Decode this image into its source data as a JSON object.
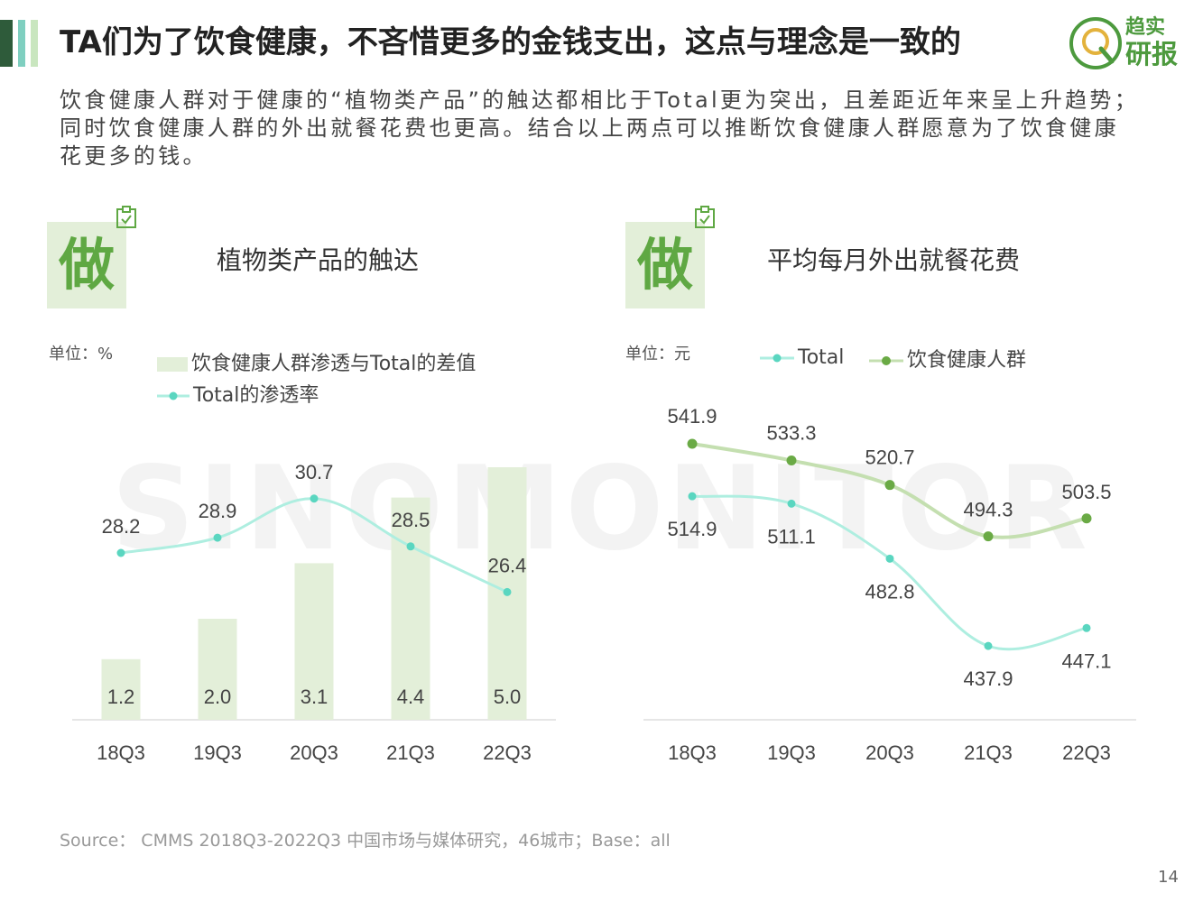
{
  "header": {
    "title": "TA们为了饮食健康，不吝惜更多的金钱支出，这点与理念是一致的",
    "logo_line1": "趋实",
    "logo_line2": "研报",
    "accent_colors": [
      "#2e5b3a",
      "#7fcfc0",
      "#c9e6bf"
    ]
  },
  "description": "饮食健康人群对于健康的“植物类产品”的触达都相比于Total更为突出，且差距近年来呈上升趋势；同时饮食健康人群的外出就餐花费也更高。结合以上两点可以推断饮食健康人群愿意为了饮食健康花更多的钱。",
  "watermark": "SINOMONITOR",
  "panels": {
    "left": {
      "badge": "做",
      "title": "植物类产品的触达",
      "unit": "单位：%"
    },
    "right": {
      "badge": "做",
      "title": "平均每月外出就餐花费",
      "unit": "单位：元"
    }
  },
  "chart_data": [
    {
      "type": "bar+line",
      "title": "植物类产品的触达",
      "unit": "%",
      "categories": [
        "18Q3",
        "19Q3",
        "20Q3",
        "21Q3",
        "22Q3"
      ],
      "series": [
        {
          "name": "饮食健康人群渗透与Total的差值",
          "type": "bar",
          "color": "#e3efd9",
          "values": [
            1.2,
            2.0,
            3.1,
            4.4,
            5.0
          ]
        },
        {
          "name": "Total的渗透率",
          "type": "line",
          "color": "#5ad6c0",
          "values": [
            28.2,
            28.9,
            30.7,
            28.5,
            26.4
          ]
        }
      ],
      "legend_position": "top"
    },
    {
      "type": "line",
      "title": "平均每月外出就餐花费",
      "unit": "元",
      "categories": [
        "18Q3",
        "19Q3",
        "20Q3",
        "21Q3",
        "22Q3"
      ],
      "series": [
        {
          "name": "Total",
          "color": "#5ad6c0",
          "line_color": "#aeeee0",
          "values": [
            514.9,
            511.1,
            482.8,
            437.9,
            447.1
          ]
        },
        {
          "name": "饮食健康人群",
          "color": "#6aaa45",
          "line_color": "#c4dfb0",
          "values": [
            541.9,
            533.3,
            520.7,
            494.3,
            503.5
          ]
        }
      ],
      "legend_position": "top"
    }
  ],
  "footer": {
    "source": "Source： CMMS 2018Q3-2022Q3 中国市场与媒体研究，46城市；Base：all",
    "page_number": "14"
  }
}
